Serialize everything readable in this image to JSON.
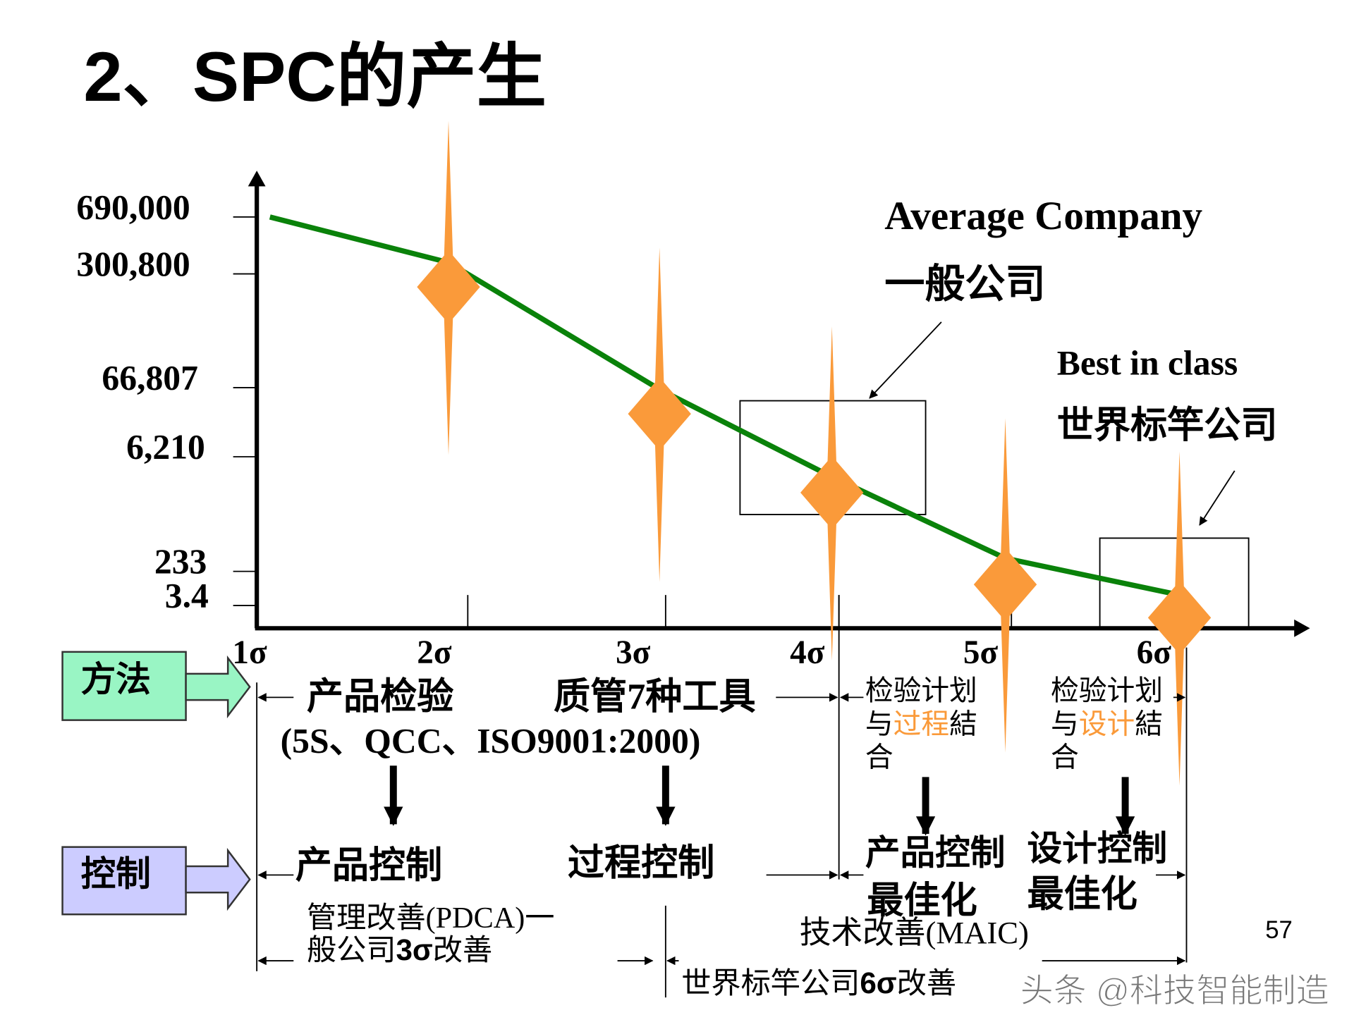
{
  "title": "2、SPC的产生",
  "chart_data": {
    "type": "line",
    "x": [
      "1σ",
      "2σ",
      "3σ",
      "4σ",
      "5σ",
      "6σ"
    ],
    "y_tick_labels": [
      "690,000",
      "300,800",
      "66,807",
      "6,210",
      "233",
      "3.4"
    ],
    "series": [
      {
        "values": [
          690000,
          300800,
          66807,
          6210,
          233,
          3.4
        ]
      }
    ],
    "markers_at": [
      "2σ",
      "3σ",
      "4σ",
      "5σ",
      "6σ"
    ],
    "annotations": {
      "average_en": "Average Company",
      "average_cn": "一般公司",
      "best_en": "Best in class",
      "best_cn": "世界标竿公司"
    }
  },
  "colors": {
    "line": "#0a820a",
    "marker": "#fa9a3a",
    "method_box": "#99f5c4",
    "control_box": "#ccccff",
    "highlight": "#fa9a3a"
  },
  "rows": {
    "method_label": "方法",
    "control_label": "控制"
  },
  "methods": {
    "m1": "产品检验",
    "m2": "质管7种工具",
    "m_sub": "(5S、QCC、ISO9001:2000)",
    "m3_l1": "检验计划",
    "m3_l2a": "与",
    "m3_l2b": "过程",
    "m3_l2c": "結",
    "m3_l3": "合",
    "m4_l1": "检验计划",
    "m4_l2a": "与",
    "m4_l2b": "设计",
    "m4_l2c": "結",
    "m4_l3": "合"
  },
  "controls": {
    "c1": "产品控制",
    "c2": "过程控制",
    "c3_l1": "产品控制",
    "c3_l2": "最佳化",
    "c4_l1": "设计控制",
    "c4_l2": "最佳化"
  },
  "improvements": {
    "i1_l1": "管理改善(PDCA)一",
    "i1_l2a": "般公司",
    "i1_l2b": "3σ",
    "i1_l2c": "改善",
    "i2": "技术改善(MAIC)",
    "i3a": "世界标竿公司",
    "i3b": "6σ",
    "i3c": "改善"
  },
  "page_number": "57",
  "watermark": "头条 @科技智能制造"
}
